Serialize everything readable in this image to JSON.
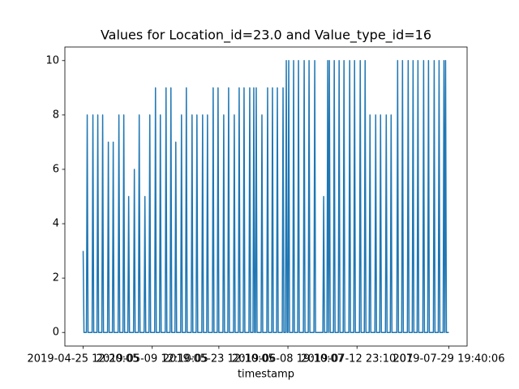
{
  "chart_data": {
    "type": "line",
    "title": "Values for Location_id=23.0 and Value_type_id=16",
    "x_label": "timestamp",
    "x": [
      0,
      1,
      4,
      5,
      6,
      11,
      12,
      13,
      17,
      18,
      19,
      23,
      24,
      25,
      30,
      31,
      32,
      36,
      37,
      38,
      43,
      44,
      45,
      49,
      50,
      51,
      55,
      56,
      57,
      62,
      63,
      64,
      68,
      69,
      70,
      75,
      76,
      77,
      81,
      82,
      83,
      88,
      89,
      90,
      94,
      95,
      96,
      101,
      102,
      103,
      107,
      108,
      109,
      113,
      114,
      115,
      120,
      121,
      122,
      126,
      127,
      128,
      133,
      134,
      135,
      139,
      140,
      141,
      146,
      147,
      148,
      152,
      153,
      154,
      159,
      160,
      161,
      165,
      166,
      167,
      172,
      173,
      174,
      178,
      179,
      180,
      185,
      186,
      187,
      191,
      192,
      193,
      197,
      198,
      199,
      204,
      205,
      206,
      209,
      210,
      211,
      212,
      213,
      214,
      219,
      220,
      221,
      226,
      227,
      228,
      232,
      233,
      234,
      238,
      239,
      240,
      245,
      246,
      247,
      249,
      250,
      251,
      252,
      253,
      254,
      258,
      259,
      260,
      264,
      265,
      266,
      271,
      272,
      273,
      277,
      278,
      279,
      284,
      285,
      286,
      295,
      296,
      297,
      300,
      301,
      302,
      302,
      303,
      304,
      308,
      309,
      310,
      314,
      315,
      316,
      320,
      321,
      322,
      327,
      328,
      329,
      333,
      334,
      335,
      340,
      341,
      342,
      346,
      347,
      348,
      352,
      353,
      354,
      359,
      360,
      361,
      365,
      366,
      367,
      372,
      373,
      374,
      378,
      379,
      380,
      386,
      387,
      388,
      392,
      393,
      394,
      399,
      400,
      401,
      405,
      406,
      407,
      411,
      412,
      413,
      418,
      419,
      420,
      424,
      425,
      426,
      431,
      432,
      433,
      437,
      438,
      439,
      443,
      444,
      445,
      445,
      446,
      447,
      450
    ],
    "series": [
      {
        "color": "#1f77b4",
        "values": [
          3,
          0,
          0,
          8,
          0,
          0,
          8,
          0,
          0,
          8,
          0,
          0,
          8,
          0,
          0,
          7,
          0,
          0,
          7,
          0,
          0,
          8,
          0,
          0,
          8,
          0,
          0,
          5,
          0,
          0,
          6,
          0,
          0,
          8,
          0,
          0,
          5,
          0,
          0,
          8,
          0,
          0,
          9,
          0,
          0,
          8,
          0,
          0,
          9,
          0,
          0,
          9,
          0,
          0,
          7,
          0,
          0,
          8,
          0,
          0,
          9,
          0,
          0,
          8,
          0,
          0,
          8,
          0,
          0,
          8,
          0,
          0,
          8,
          0,
          0,
          9,
          0,
          0,
          9,
          0,
          0,
          8,
          0,
          0,
          9,
          0,
          0,
          8,
          0,
          0,
          9,
          0,
          0,
          9,
          0,
          0,
          9,
          0,
          0,
          9,
          0,
          0,
          9,
          0,
          0,
          8,
          0,
          0,
          9,
          0,
          0,
          9,
          0,
          0,
          9,
          0,
          0,
          9,
          0,
          0,
          10,
          0,
          0,
          10,
          0,
          0,
          10,
          0,
          0,
          10,
          0,
          0,
          10,
          0,
          0,
          10,
          0,
          0,
          10,
          0,
          0,
          5,
          0,
          0,
          10,
          0,
          0,
          10,
          0,
          0,
          10,
          0,
          0,
          10,
          0,
          0,
          10,
          0,
          0,
          10,
          0,
          0,
          10,
          0,
          0,
          10,
          0,
          0,
          10,
          0,
          0,
          8,
          0,
          0,
          8,
          0,
          0,
          8,
          0,
          0,
          8,
          0,
          0,
          8,
          0,
          0,
          10,
          0,
          0,
          10,
          0,
          0,
          10,
          0,
          0,
          10,
          0,
          0,
          10,
          0,
          0,
          10,
          0,
          0,
          10,
          0,
          0,
          10,
          0,
          0,
          10,
          0,
          0,
          10,
          0,
          0,
          10,
          0,
          0
        ]
      }
    ],
    "xlim": [
      -22.5,
      472.5
    ],
    "xticks": [
      {
        "value": 0,
        "label": "2019-04-25 12:20:05"
      },
      {
        "value": 85,
        "label": "2019-05-09 12:10:05"
      },
      {
        "value": 167,
        "label": "2019-05-23 12:10:05"
      },
      {
        "value": 252,
        "label": "2019-06-08 19:10:07"
      },
      {
        "value": 337,
        "label": "2019-07-12 23:10:07"
      },
      {
        "value": 450,
        "label": "2019-07-29 19:40:06"
      }
    ],
    "ylim": [
      -0.5,
      10.5
    ],
    "yticks": [
      0,
      2,
      4,
      6,
      8,
      10
    ],
    "grid": false
  }
}
